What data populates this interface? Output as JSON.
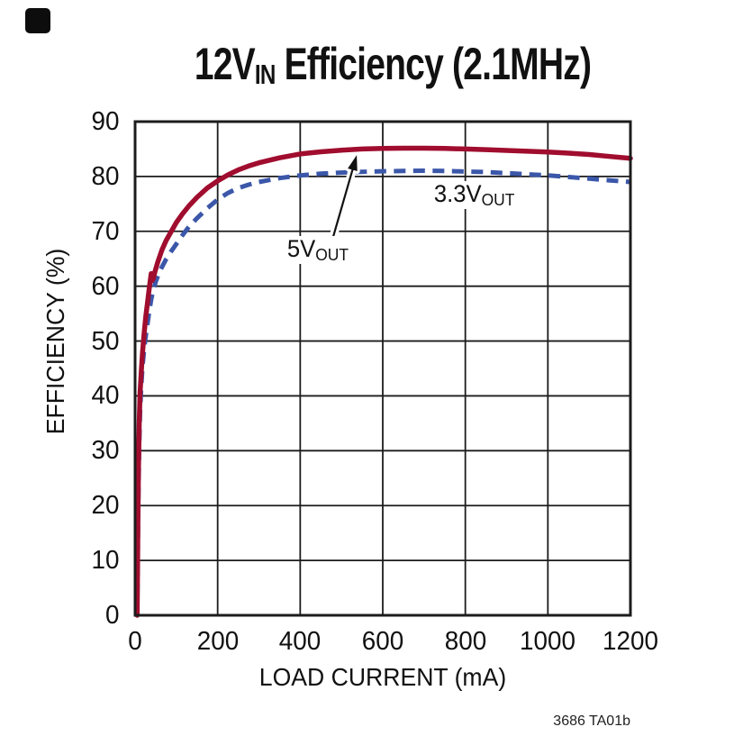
{
  "page": {
    "corner_marker": true,
    "background": "#ffffff"
  },
  "title": {
    "prefix": "12V",
    "subscript": "IN",
    "suffix": " Efficiency (2.1MHz)"
  },
  "footer": {
    "note": "3686 TA01b"
  },
  "chart_data": {
    "type": "line",
    "title": "12VIN Efficiency (2.1MHz)",
    "xlabel": "LOAD CURRENT (mA)",
    "ylabel": "EFFICIENCY (%)",
    "xlim": [
      0,
      1200
    ],
    "ylim": [
      0,
      90
    ],
    "x_ticks": [
      0,
      200,
      400,
      600,
      800,
      1000,
      1200
    ],
    "y_ticks": [
      0,
      10,
      20,
      30,
      40,
      50,
      60,
      70,
      80,
      90
    ],
    "grid": true,
    "legend_position": "inline-annotations",
    "colors": {
      "grid": "#1c1c1c",
      "text": "#111111",
      "background": "#ffffff"
    },
    "series": [
      {
        "name": "5VOUT",
        "label_main": "5V",
        "label_sub": "OUT",
        "color": "#A00D2E",
        "style": "solid",
        "points": [
          [
            5,
            0
          ],
          [
            6,
            10
          ],
          [
            7,
            18
          ],
          [
            8,
            26
          ],
          [
            10,
            35
          ],
          [
            12,
            40.5
          ],
          [
            15,
            44.5
          ],
          [
            18,
            48
          ],
          [
            22,
            51.5
          ],
          [
            26,
            54.5
          ],
          [
            30,
            57
          ],
          [
            33,
            58.8
          ],
          [
            36,
            60.6
          ],
          [
            39,
            62.3
          ],
          [
            41,
            61.0
          ],
          [
            44,
            61.4
          ],
          [
            48,
            62.6
          ],
          [
            55,
            64.4
          ],
          [
            65,
            66.6
          ],
          [
            75,
            68.3
          ],
          [
            87,
            69.9
          ],
          [
            100,
            71.6
          ],
          [
            115,
            73.2
          ],
          [
            130,
            74.6
          ],
          [
            150,
            76.2
          ],
          [
            175,
            77.9
          ],
          [
            200,
            79.2
          ],
          [
            225,
            80.3
          ],
          [
            250,
            81.2
          ],
          [
            275,
            81.9
          ],
          [
            300,
            82.5
          ],
          [
            350,
            83.4
          ],
          [
            400,
            84.1
          ],
          [
            450,
            84.5
          ],
          [
            500,
            84.8
          ],
          [
            550,
            85.0
          ],
          [
            600,
            85.1
          ],
          [
            650,
            85.15
          ],
          [
            700,
            85.15
          ],
          [
            750,
            85.1
          ],
          [
            800,
            85.0
          ],
          [
            850,
            84.9
          ],
          [
            900,
            84.75
          ],
          [
            950,
            84.6
          ],
          [
            1000,
            84.45
          ],
          [
            1050,
            84.25
          ],
          [
            1100,
            84.0
          ],
          [
            1150,
            83.65
          ],
          [
            1200,
            83.3
          ]
        ]
      },
      {
        "name": "3.3VOUT",
        "label_main": "3.3V",
        "label_sub": "OUT",
        "color": "#3B57A9",
        "style": "dashed",
        "points": [
          [
            5,
            0
          ],
          [
            6,
            8
          ],
          [
            7,
            15
          ],
          [
            8,
            22
          ],
          [
            10,
            31
          ],
          [
            12,
            37
          ],
          [
            15,
            42
          ],
          [
            18,
            45.5
          ],
          [
            21,
            47.8
          ],
          [
            24,
            49.8
          ],
          [
            27,
            51.6
          ],
          [
            30,
            53.2
          ],
          [
            33,
            54.7
          ],
          [
            36,
            56.2
          ],
          [
            39,
            57.6
          ],
          [
            44,
            59.3
          ],
          [
            50,
            60.8
          ],
          [
            57,
            62.2
          ],
          [
            65,
            63.5
          ],
          [
            75,
            64.9
          ],
          [
            87,
            66.3
          ],
          [
            100,
            67.7
          ],
          [
            115,
            69.3
          ],
          [
            130,
            70.8
          ],
          [
            150,
            72.4
          ],
          [
            175,
            74.2
          ],
          [
            200,
            75.8
          ],
          [
            225,
            77.0
          ],
          [
            250,
            77.9
          ],
          [
            275,
            78.5
          ],
          [
            300,
            79.0
          ],
          [
            350,
            79.7
          ],
          [
            400,
            80.2
          ],
          [
            450,
            80.5
          ],
          [
            500,
            80.7
          ],
          [
            550,
            80.85
          ],
          [
            600,
            80.95
          ],
          [
            650,
            81.0
          ],
          [
            700,
            81.05
          ],
          [
            750,
            81.0
          ],
          [
            800,
            80.9
          ],
          [
            850,
            80.8
          ],
          [
            900,
            80.6
          ],
          [
            950,
            80.4
          ],
          [
            1000,
            80.2
          ],
          [
            1050,
            79.9
          ],
          [
            1100,
            79.6
          ],
          [
            1150,
            79.3
          ],
          [
            1200,
            79.0
          ]
        ]
      }
    ],
    "annotations": [
      {
        "type": "arrow",
        "series": "5VOUT",
        "from_data": [
          478,
          68.5
        ],
        "to_data": [
          537,
          83.9
        ]
      }
    ]
  }
}
